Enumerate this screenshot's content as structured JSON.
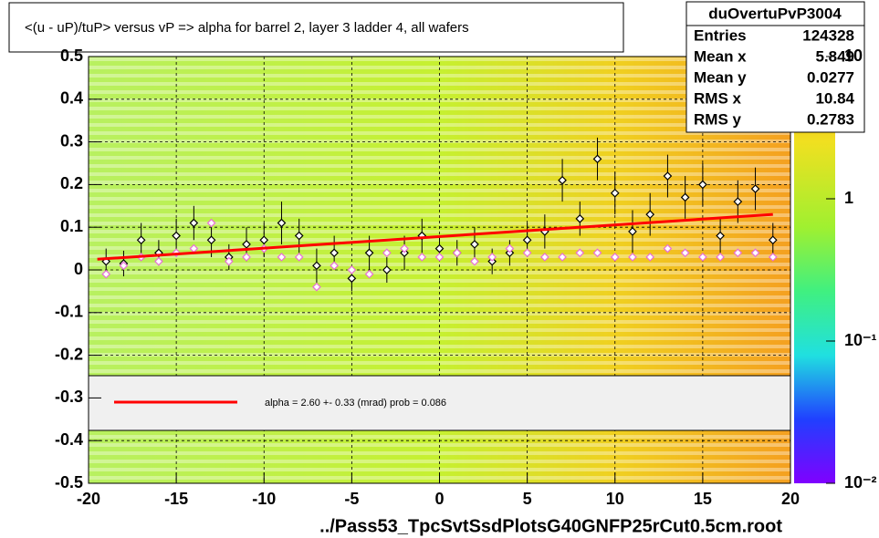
{
  "chart_data": {
    "type": "scatter",
    "title": "<(u - uP)/tuP> versus   vP => alpha for barrel 2, layer 3 ladder 4, all wafers",
    "x_label": "../Pass53_TpcSvtSsdPlotsG40GNFP25rCut0.5cm.root",
    "xlim": [
      -20,
      20
    ],
    "ylim": [
      -0.5,
      0.5
    ],
    "xticks": [
      -20,
      -15,
      -10,
      -5,
      0,
      5,
      10,
      15,
      20
    ],
    "yticks": [
      -0.5,
      -0.4,
      -0.3,
      -0.2,
      -0.1,
      0,
      0.1,
      0.2,
      0.3,
      0.4,
      0.5
    ],
    "grid": true,
    "zlim": [
      0.01,
      10
    ],
    "log_z": true,
    "zticks": [
      {
        "value": 10,
        "label": "10"
      },
      1,
      {
        "value": 0.1,
        "label": "10⁻¹"
      },
      {
        "value": 0.01,
        "label": "10⁻²"
      }
    ],
    "x": [
      -19,
      -18,
      -17,
      -16,
      -15,
      -14,
      -13,
      -12,
      -11,
      -10,
      -9,
      -8,
      -7,
      -6,
      -5,
      -4,
      -3,
      -2,
      -1,
      0,
      1,
      2,
      3,
      4,
      5,
      6,
      7,
      8,
      9,
      10,
      11,
      12,
      13,
      14,
      15,
      16,
      17,
      18,
      19
    ],
    "series": [
      {
        "color": "#000000",
        "values": [
          0.02,
          0.015,
          0.07,
          0.04,
          0.08,
          0.11,
          0.07,
          0.03,
          0.06,
          0.07,
          0.11,
          0.08,
          0.01,
          0.04,
          -0.02,
          0.04,
          0.0,
          0.04,
          0.08,
          0.05,
          0.04,
          0.06,
          0.02,
          0.04,
          0.07,
          0.09,
          0.21,
          0.12,
          0.26,
          0.18,
          0.09,
          0.13,
          0.22,
          0.17,
          0.2,
          0.08,
          0.16,
          0.19,
          0.07
        ],
        "errors": [
          0.03,
          0.03,
          0.04,
          0.03,
          0.04,
          0.04,
          0.04,
          0.03,
          0.04,
          0.04,
          0.05,
          0.04,
          0.04,
          0.04,
          0.03,
          0.04,
          0.03,
          0.04,
          0.04,
          0.03,
          0.03,
          0.04,
          0.03,
          0.03,
          0.04,
          0.04,
          0.05,
          0.04,
          0.05,
          0.05,
          0.05,
          0.05,
          0.05,
          0.05,
          0.05,
          0.04,
          0.05,
          0.05,
          0.04
        ]
      },
      {
        "color": "#e86fd6",
        "values": [
          -0.01,
          0.01,
          0.03,
          0.02,
          0.04,
          0.05,
          0.11,
          0.02,
          0.03,
          0.05,
          0.03,
          0.03,
          -0.04,
          0.01,
          0.0,
          -0.01,
          0.04,
          0.05,
          0.03,
          0.03,
          0.04,
          0.02,
          0.03,
          0.05,
          0.04,
          0.03,
          0.03,
          0.04,
          0.04,
          0.03,
          0.03,
          0.03,
          0.05,
          0.04,
          0.03,
          0.03,
          0.04,
          0.04,
          0.03
        ]
      }
    ],
    "fit": {
      "color": "#ff0000",
      "x": [
        -19.5,
        19
      ],
      "values": [
        0.025,
        0.13
      ],
      "label": "alpha =    2.60 +-  0.33 (mrad) prob = 0.086"
    },
    "stats": {
      "title": "duOvertuPvP3004",
      "rows": [
        [
          "Entries",
          "124328"
        ],
        [
          "Mean x",
          "5.849"
        ],
        [
          "Mean y",
          "0.0277"
        ],
        [
          "RMS x",
          "10.84"
        ],
        [
          "RMS y",
          "0.2783"
        ]
      ]
    }
  }
}
